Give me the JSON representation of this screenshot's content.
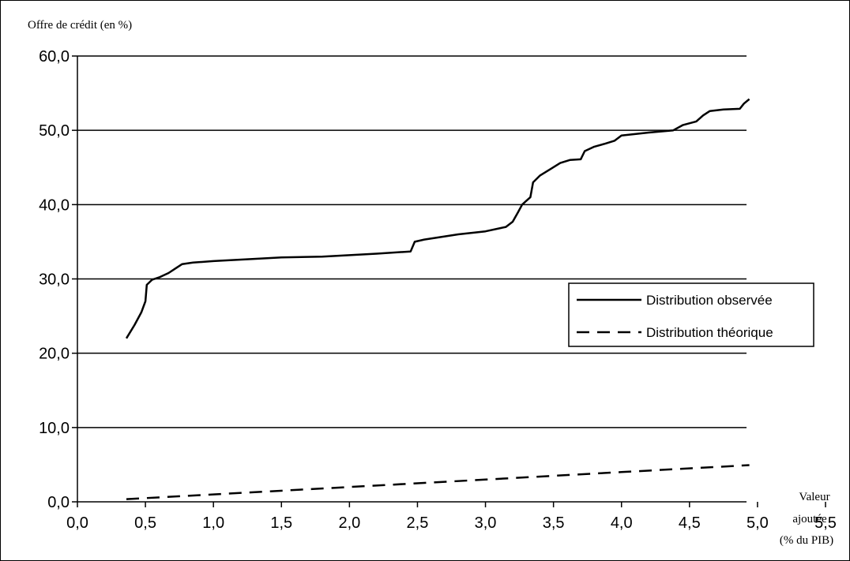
{
  "chart_data": {
    "type": "line",
    "ylabel": "Offre de crédit (en %)",
    "xlabel_lines": [
      "Valeur",
      "ajoutée",
      "(% du PIB)"
    ],
    "xlim": [
      0,
      5.5
    ],
    "ylim": [
      0,
      60
    ],
    "x_ticks": [
      0,
      0.5,
      1,
      1.5,
      2,
      2.5,
      3,
      3.5,
      4,
      4.5,
      5,
      5.5
    ],
    "x_tick_labels": [
      "0,0",
      "0,5",
      "1,0",
      "1,5",
      "2,0",
      "2,5",
      "3,0",
      "3,5",
      "4,0",
      "4,5",
      "5,0",
      "5,5"
    ],
    "y_ticks": [
      0,
      10,
      20,
      30,
      40,
      50,
      60
    ],
    "y_tick_labels": [
      "0,0",
      "10,0",
      "20,0",
      "30,0",
      "40,0",
      "50,0",
      "60,0"
    ],
    "grid": "horizontal",
    "legend_position": "right",
    "series": [
      {
        "name": "Distribution observée",
        "style": "solid",
        "color": "#000000",
        "points": [
          [
            0.36,
            22.0
          ],
          [
            0.42,
            23.8
          ],
          [
            0.47,
            25.5
          ],
          [
            0.5,
            27.0
          ],
          [
            0.51,
            29.2
          ],
          [
            0.55,
            29.9
          ],
          [
            0.6,
            30.2
          ],
          [
            0.67,
            30.8
          ],
          [
            0.72,
            31.4
          ],
          [
            0.77,
            32.0
          ],
          [
            0.85,
            32.2
          ],
          [
            1.0,
            32.4
          ],
          [
            1.3,
            32.7
          ],
          [
            1.5,
            32.9
          ],
          [
            1.8,
            33.0
          ],
          [
            2.0,
            33.2
          ],
          [
            2.2,
            33.4
          ],
          [
            2.45,
            33.7
          ],
          [
            2.48,
            35.0
          ],
          [
            2.55,
            35.3
          ],
          [
            2.8,
            36.0
          ],
          [
            3.0,
            36.4
          ],
          [
            3.15,
            37.0
          ],
          [
            3.2,
            37.7
          ],
          [
            3.24,
            39.0
          ],
          [
            3.27,
            40.0
          ],
          [
            3.3,
            40.5
          ],
          [
            3.33,
            41.0
          ],
          [
            3.35,
            43.0
          ],
          [
            3.4,
            43.9
          ],
          [
            3.48,
            44.8
          ],
          [
            3.55,
            45.6
          ],
          [
            3.62,
            46.0
          ],
          [
            3.7,
            46.1
          ],
          [
            3.73,
            47.2
          ],
          [
            3.8,
            47.8
          ],
          [
            3.88,
            48.2
          ],
          [
            3.95,
            48.6
          ],
          [
            4.0,
            49.3
          ],
          [
            4.1,
            49.5
          ],
          [
            4.2,
            49.7
          ],
          [
            4.38,
            50.0
          ],
          [
            4.45,
            50.7
          ],
          [
            4.55,
            51.2
          ],
          [
            4.6,
            52.0
          ],
          [
            4.65,
            52.6
          ],
          [
            4.75,
            52.8
          ],
          [
            4.87,
            52.9
          ],
          [
            4.9,
            53.6
          ],
          [
            4.94,
            54.2
          ]
        ]
      },
      {
        "name": "Distribution théorique",
        "style": "dashed",
        "color": "#000000",
        "points": [
          [
            0.36,
            0.36
          ],
          [
            1.0,
            1.0
          ],
          [
            2.0,
            2.0
          ],
          [
            3.0,
            3.0
          ],
          [
            4.0,
            4.0
          ],
          [
            4.94,
            4.94
          ]
        ]
      }
    ]
  }
}
